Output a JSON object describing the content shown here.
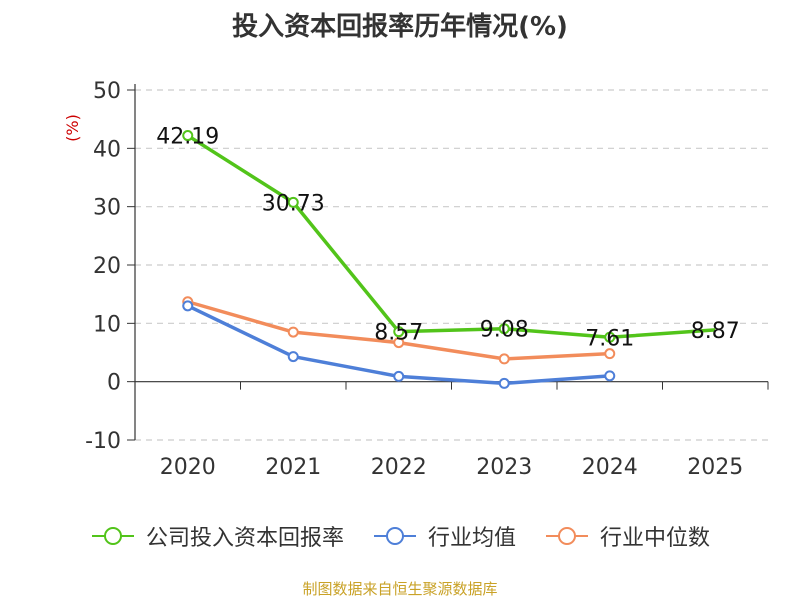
{
  "title": "投入资本回报率历年情况(%)",
  "source": "制图数据来自恒生聚源数据库",
  "chart_data": {
    "type": "line",
    "title": "投入资本回报率历年情况(%)",
    "ylabel": "(%)",
    "categories": [
      "2020",
      "2021",
      "2022",
      "2023",
      "2024",
      "2025"
    ],
    "ylim": [
      -10,
      50
    ],
    "yticks": [
      -10,
      0,
      10,
      20,
      30,
      40,
      50
    ],
    "grid": true,
    "legend_position": "bottom",
    "series": [
      {
        "name": "公司投入资本回报率",
        "color": "#52c41a",
        "values": [
          42.19,
          30.73,
          8.57,
          9.08,
          7.61,
          8.87
        ],
        "labels": [
          "42.19",
          "30.73",
          "8.57",
          "9.08",
          "7.61",
          "8.87"
        ]
      },
      {
        "name": "行业均值",
        "color": "#4e7fd8",
        "values": [
          13.0,
          4.3,
          0.9,
          -0.3,
          1.0,
          null
        ]
      },
      {
        "name": "行业中位数",
        "color": "#f28c5b",
        "values": [
          13.7,
          8.5,
          6.7,
          3.9,
          4.8,
          null
        ]
      }
    ]
  }
}
